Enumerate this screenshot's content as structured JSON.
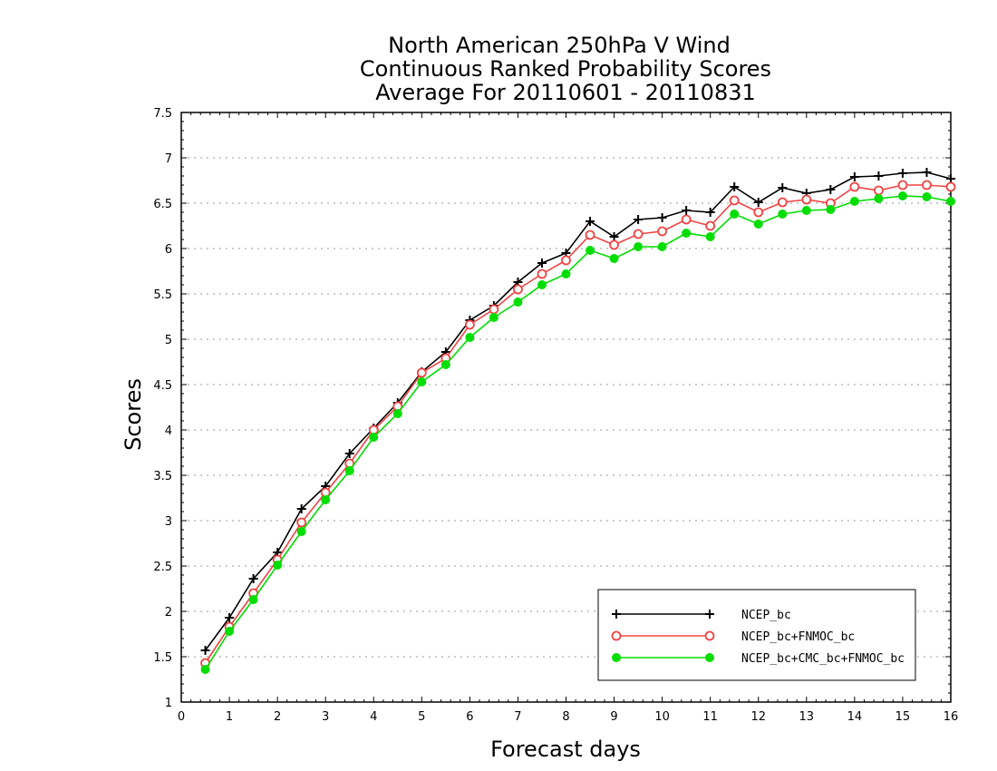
{
  "chart_data": {
    "type": "line",
    "title": [
      "North American 250hPa V Wind",
      "Continuous Ranked Probability Scores",
      "Average For 20110601 - 20110831"
    ],
    "xlabel": "Forecast days",
    "ylabel": "Scores",
    "xlim": [
      0,
      16
    ],
    "ylim": [
      1,
      7.5
    ],
    "xticks": [
      0,
      1,
      2,
      3,
      4,
      5,
      6,
      7,
      8,
      9,
      10,
      11,
      12,
      13,
      14,
      15,
      16
    ],
    "yticks": [
      1,
      1.5,
      2,
      2.5,
      3,
      3.5,
      4,
      4.5,
      5,
      5.5,
      6,
      6.5,
      7,
      7.5
    ],
    "ytick_labels": [
      "1",
      "1.5",
      "2",
      "2.5",
      "3",
      "3.5",
      "4",
      "4.5",
      "5",
      "5.5",
      "6",
      "6.5",
      "7",
      "7.5"
    ],
    "grid": "horizontal dotted",
    "legend_position": "bottom-right",
    "x": [
      0.5,
      1,
      1.5,
      2,
      2.5,
      3,
      3.5,
      4,
      4.5,
      5,
      5.5,
      6,
      6.5,
      7,
      7.5,
      8,
      8.5,
      9,
      9.5,
      10,
      10.5,
      11,
      11.5,
      12,
      12.5,
      13,
      13.5,
      14,
      14.5,
      15,
      15.5,
      16
    ],
    "series": [
      {
        "name": "NCEP_bc",
        "color": "#000000",
        "marker": "plus",
        "values": [
          1.57,
          1.93,
          2.36,
          2.65,
          3.13,
          3.38,
          3.74,
          4.02,
          4.3,
          4.64,
          4.86,
          5.21,
          5.37,
          5.63,
          5.84,
          5.95,
          6.3,
          6.13,
          6.32,
          6.34,
          6.42,
          6.4,
          6.68,
          6.51,
          6.67,
          6.61,
          6.65,
          6.79,
          6.8,
          6.83,
          6.84,
          6.77
        ]
      },
      {
        "name": "NCEP_bc+FNMOC_bc",
        "color": "#ee4444",
        "marker": "open-circle",
        "values": [
          1.43,
          1.83,
          2.2,
          2.57,
          2.98,
          3.31,
          3.63,
          4.0,
          4.26,
          4.63,
          4.79,
          5.16,
          5.33,
          5.55,
          5.72,
          5.87,
          6.15,
          6.04,
          6.16,
          6.19,
          6.32,
          6.25,
          6.53,
          6.4,
          6.51,
          6.54,
          6.5,
          6.68,
          6.64,
          6.7,
          6.7,
          6.68
        ]
      },
      {
        "name": "NCEP_bc+CMC_bc+FNMOC_bc",
        "color": "#00dd00",
        "marker": "filled-circle",
        "values": [
          1.36,
          1.78,
          2.13,
          2.51,
          2.88,
          3.23,
          3.55,
          3.92,
          4.18,
          4.53,
          4.72,
          5.02,
          5.24,
          5.41,
          5.6,
          5.72,
          5.98,
          5.89,
          6.02,
          6.02,
          6.17,
          6.13,
          6.38,
          6.27,
          6.38,
          6.42,
          6.43,
          6.52,
          6.55,
          6.58,
          6.57,
          6.52
        ]
      }
    ]
  }
}
